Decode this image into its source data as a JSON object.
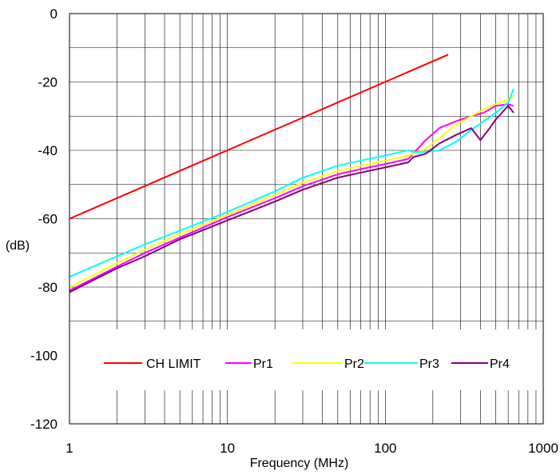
{
  "chart_data": {
    "type": "line",
    "title": "",
    "xlabel": "Frequency (MHz)",
    "ylabel": "(dB)",
    "x_scale": "log",
    "xlim": [
      1,
      1000
    ],
    "ylim": [
      -120,
      0
    ],
    "x_ticks": [
      1,
      10,
      100,
      1000
    ],
    "x_tick_labels": [
      "1",
      "10",
      "100",
      "1000"
    ],
    "y_ticks": [
      0,
      -20,
      -40,
      -60,
      -80,
      -100,
      -120
    ],
    "y_tick_labels": [
      "0",
      "-20",
      "-40",
      "-60",
      "-80",
      "-100",
      "-120"
    ],
    "grid": true,
    "legend_position": "bottom",
    "series": [
      {
        "name": "CH LIMIT",
        "color": "#ff0000",
        "x": [
          1,
          250
        ],
        "y": [
          -60,
          -12
        ]
      },
      {
        "name": "Pr1",
        "color": "#ff00ff",
        "x": [
          1,
          2,
          3,
          5,
          10,
          20,
          30,
          50,
          70,
          100,
          140,
          150,
          180,
          220,
          280,
          350,
          420,
          500,
          600,
          650
        ],
        "y": [
          -81,
          -74,
          -70,
          -65.5,
          -59.5,
          -54,
          -50.5,
          -47,
          -45.5,
          -44,
          -42.5,
          -41,
          -37,
          -33.5,
          -31.5,
          -30,
          -29,
          -27,
          -26.5,
          -27
        ]
      },
      {
        "name": "Pr2",
        "color": "#ffff00",
        "x": [
          1,
          2,
          3,
          5,
          10,
          20,
          30,
          50,
          70,
          100,
          140,
          150,
          180,
          220,
          280,
          350,
          420,
          500,
          600,
          650
        ],
        "y": [
          -80,
          -73,
          -69,
          -64.5,
          -59,
          -53,
          -49.5,
          -46,
          -44.5,
          -43,
          -41.5,
          -41,
          -39.5,
          -36.5,
          -32.5,
          -30,
          -28,
          -26.5,
          -25,
          -24
        ]
      },
      {
        "name": "Pr3",
        "color": "#00ffff",
        "x": [
          1,
          2,
          3,
          5,
          10,
          20,
          30,
          50,
          70,
          100,
          140,
          150,
          180,
          220,
          280,
          350,
          420,
          500,
          600,
          650
        ],
        "y": [
          -77,
          -71,
          -67.5,
          -63.5,
          -58,
          -52,
          -48,
          -44.5,
          -43,
          -41.5,
          -40,
          -40.5,
          -40.5,
          -40,
          -37.5,
          -34,
          -31.5,
          -29,
          -26,
          -22
        ]
      },
      {
        "name": "Pr4",
        "color": "#800080",
        "x": [
          1,
          2,
          3,
          5,
          10,
          20,
          30,
          50,
          70,
          100,
          140,
          150,
          180,
          220,
          280,
          350,
          400,
          450,
          500,
          600,
          650
        ],
        "y": [
          -81.5,
          -74.5,
          -71,
          -66,
          -60.5,
          -55,
          -51.5,
          -48,
          -46.5,
          -45,
          -43.5,
          -42,
          -41,
          -38,
          -35.5,
          -33.5,
          -37,
          -34,
          -31,
          -27,
          -29
        ]
      }
    ]
  }
}
